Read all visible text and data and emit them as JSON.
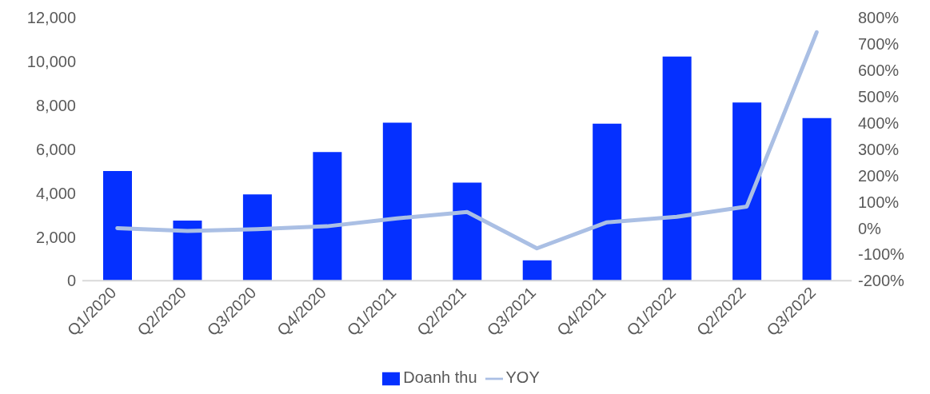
{
  "chart_data": {
    "type": "bar",
    "categories": [
      "Q1/2020",
      "Q2/2020",
      "Q3/2020",
      "Q4/2020",
      "Q1/2021",
      "Q2/2021",
      "Q3/2021",
      "Q4/2021",
      "Q1/2022",
      "Q2/2022",
      "Q3/2022"
    ],
    "series": [
      {
        "name": "Doanh thu",
        "color": "#0530ff",
        "values": [
          5000,
          2740,
          3940,
          5870,
          7210,
          4470,
          930,
          7160,
          10220,
          8130,
          7420
        ]
      },
      {
        "name": "YOY",
        "type": "line",
        "axis": "y2",
        "color": "#aabfe4",
        "values": [
          0,
          -11,
          -4,
          7,
          37,
          61,
          -77,
          22,
          43,
          82,
          744
        ]
      }
    ],
    "ylim": [
      0,
      12000
    ],
    "yticks": [
      {
        "value": 0,
        "label": "0"
      },
      {
        "value": 2000,
        "label": "2,000"
      },
      {
        "value": 4000,
        "label": "4,000"
      },
      {
        "value": 6000,
        "label": "6,000"
      },
      {
        "value": 8000,
        "label": "8,000"
      },
      {
        "value": 10000,
        "label": "10,000"
      },
      {
        "value": 12000,
        "label": "12,000"
      }
    ],
    "y2lim": [
      -200,
      800
    ],
    "y2ticks": [
      {
        "value": -200,
        "label": "-200%"
      },
      {
        "value": -100,
        "label": "-100%"
      },
      {
        "value": 0,
        "label": "0%"
      },
      {
        "value": 100,
        "label": "100%"
      },
      {
        "value": 200,
        "label": "200%"
      },
      {
        "value": 300,
        "label": "300%"
      },
      {
        "value": 400,
        "label": "400%"
      },
      {
        "value": 500,
        "label": "500%"
      },
      {
        "value": 600,
        "label": "600%"
      },
      {
        "value": 700,
        "label": "700%"
      },
      {
        "value": 800,
        "label": "800%"
      }
    ],
    "grid": false,
    "legend": "bottom",
    "marker": "none",
    "line_style": "solid"
  }
}
